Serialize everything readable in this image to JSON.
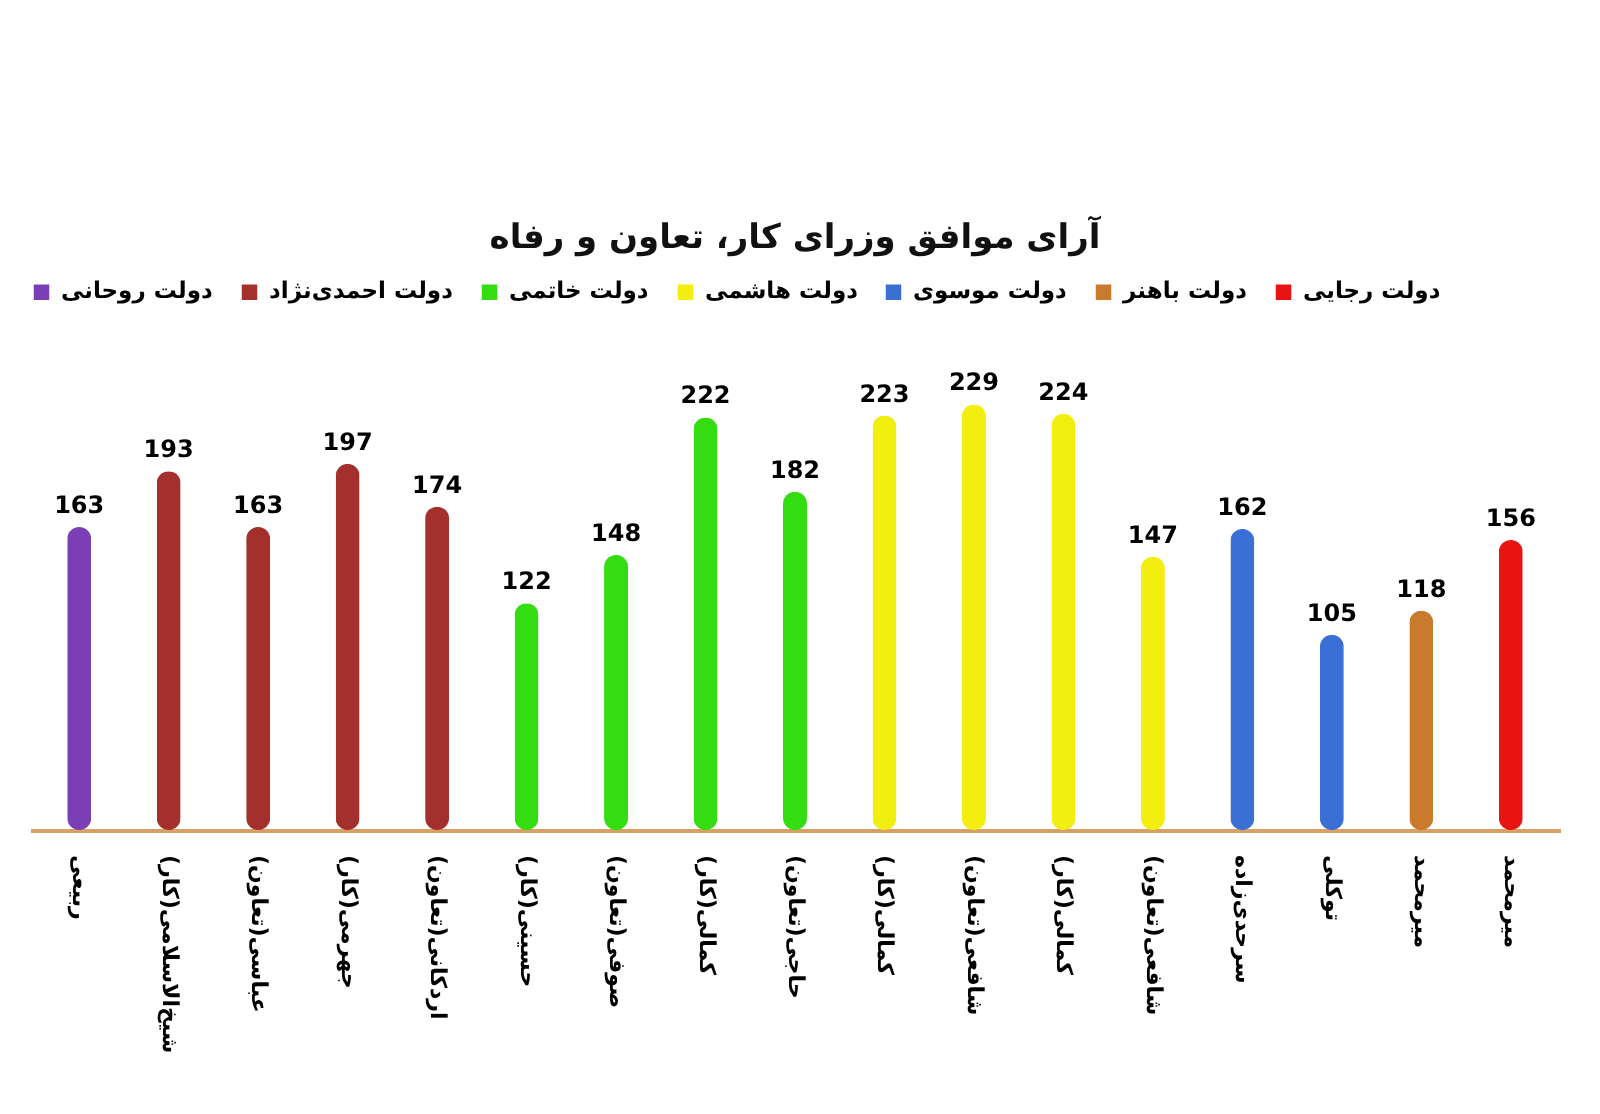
{
  "chart_data": {
    "type": "bar",
    "title": "آرای موافق وزرای کار، تعاون و رفاه",
    "categories": [
      "ربیعی",
      "شیخ‌الاسلامی(کار)",
      "عباسی(تعاون)",
      "جهرمی(کار)",
      "اردکانی(تعاون)",
      "حسینی(کار)",
      "صوفی(تعاون)",
      "کمالی(کار)",
      "حاجی(تعاون)",
      "کمالی(کار)",
      "شافعی(تعاون)",
      "کمالی(کار)",
      "شافعی(تعاون)",
      "سرحدی‌زاده",
      "توکلی",
      "میرمحمد",
      "میرمحمد"
    ],
    "series": [
      {
        "name": "دولت روحانی",
        "color": "#7b3fb5",
        "values": [
          163,
          null,
          null,
          null,
          null,
          null,
          null,
          null,
          null,
          null,
          null,
          null,
          null,
          null,
          null,
          null,
          null
        ]
      },
      {
        "name": "دولت احمدی‌نژاد",
        "color": "#a3302c",
        "values": [
          null,
          193,
          163,
          197,
          174,
          null,
          null,
          null,
          null,
          null,
          null,
          null,
          null,
          null,
          null,
          null,
          null
        ]
      },
      {
        "name": "دولت خاتمی",
        "color": "#33dd11",
        "values": [
          null,
          null,
          null,
          null,
          null,
          122,
          148,
          222,
          182,
          null,
          null,
          null,
          null,
          null,
          null,
          null,
          null
        ]
      },
      {
        "name": "دولت هاشمی",
        "color": "#f2ee10",
        "values": [
          null,
          null,
          null,
          null,
          null,
          null,
          null,
          null,
          null,
          223,
          229,
          224,
          147,
          null,
          null,
          null,
          null
        ]
      },
      {
        "name": "دولت موسوی",
        "color": "#3a6fd6",
        "values": [
          null,
          null,
          null,
          null,
          null,
          null,
          null,
          null,
          null,
          null,
          null,
          null,
          null,
          162,
          105,
          null,
          null
        ]
      },
      {
        "name": "دولت باهنر",
        "color": "#c97a2c",
        "values": [
          null,
          null,
          null,
          null,
          null,
          null,
          null,
          null,
          null,
          null,
          null,
          null,
          null,
          null,
          null,
          118,
          null
        ]
      },
      {
        "name": "دولت رجایی",
        "color": "#e81414",
        "values": [
          null,
          null,
          null,
          null,
          null,
          null,
          null,
          null,
          null,
          null,
          null,
          null,
          null,
          null,
          null,
          null,
          156
        ]
      }
    ],
    "data_labels": true,
    "legend": "top",
    "grid": false
  }
}
